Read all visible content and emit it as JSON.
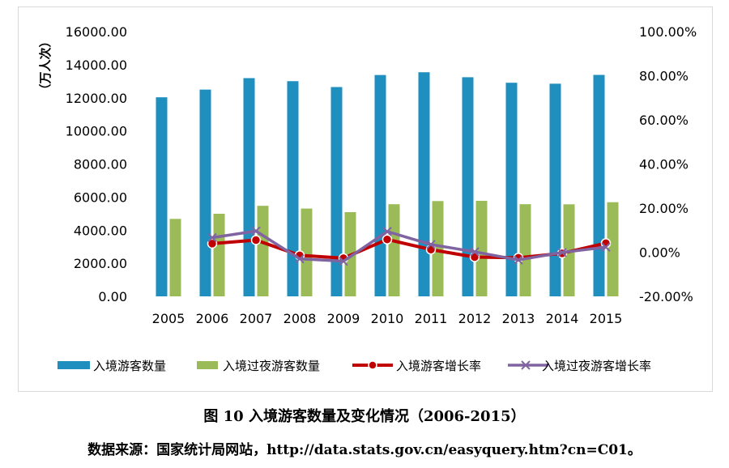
{
  "figure": {
    "title": "图 10  入境游客数量及变化情况（2006-2015）",
    "source": "数据来源：国家统计局网站，http://data.stats.gov.cn/easyquery.htm?cn=C01。"
  },
  "chart_data": {
    "type": "bar",
    "categories": [
      "2005",
      "2006",
      "2007",
      "2008",
      "2009",
      "2010",
      "2011",
      "2012",
      "2013",
      "2014",
      "2015"
    ],
    "ylabel": "（万人次）",
    "ylim": [
      0,
      16000
    ],
    "yticks": [
      "16000.00",
      "14000.00",
      "12000.00",
      "10000.00",
      "8000.00",
      "6000.00",
      "4000.00",
      "2000.00",
      "0.00"
    ],
    "y2lim": [
      -0.2,
      1.0
    ],
    "y2ticks": [
      "100.00%",
      "80.00%",
      "60.00%",
      "40.00%",
      "20.00%",
      "0.00%",
      "-20.00%"
    ],
    "grid": false,
    "legend_position": "bottom",
    "series": [
      {
        "name": "入境游客数量",
        "kind": "bar",
        "axis": "left",
        "color": "#1f8fc0",
        "values": [
          12029,
          12494,
          13187,
          13003,
          12648,
          13376,
          13542,
          13241,
          12908,
          12850,
          13382
        ]
      },
      {
        "name": "入境过夜游客数量",
        "kind": "bar",
        "axis": "left",
        "color": "#9bbb59",
        "values": [
          4681,
          4991,
          5472,
          5305,
          5088,
          5567,
          5758,
          5772,
          5569,
          5562,
          5689
        ]
      },
      {
        "name": "入境游客增长率",
        "kind": "line",
        "axis": "right",
        "color": "#c00000",
        "values": [
          null,
          0.039,
          0.055,
          -0.014,
          -0.027,
          0.058,
          0.012,
          -0.022,
          -0.025,
          -0.005,
          0.041
        ]
      },
      {
        "name": "入境过夜游客增长率",
        "kind": "line",
        "axis": "right",
        "color": "#8064a2",
        "values": [
          null,
          0.066,
          0.096,
          -0.03,
          -0.041,
          0.094,
          0.035,
          0.002,
          -0.035,
          -0.001,
          0.023
        ]
      }
    ]
  }
}
